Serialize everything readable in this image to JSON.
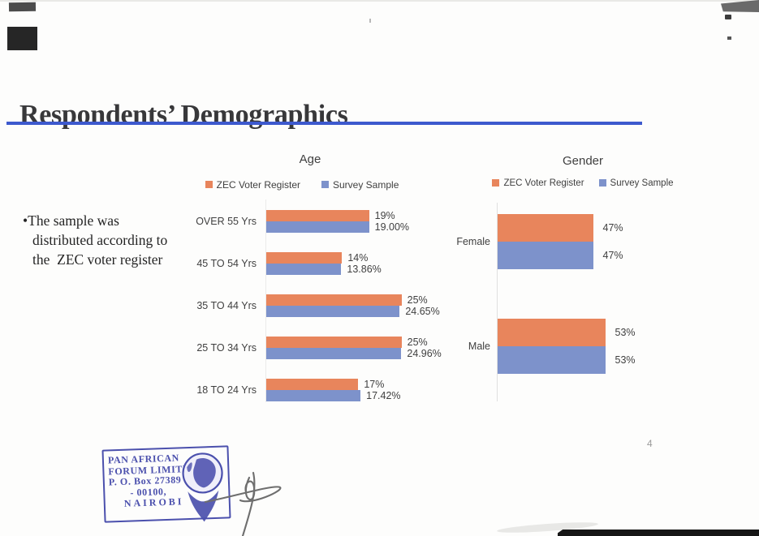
{
  "page": {
    "title": "Respondents’ Demographics",
    "page_number": "4"
  },
  "bullet": {
    "marker": "•",
    "lines": [
      "The sample was",
      "distributed according to",
      "the  ZEC voter register"
    ]
  },
  "chart_data": [
    {
      "type": "bar",
      "orientation": "horizontal",
      "title": "Age",
      "legend_position": "top",
      "grid": false,
      "value_labels": true,
      "categories": [
        "OVER 55 Yrs",
        "45 TO 54 Yrs",
        "35 TO 44 Yrs",
        "25 TO 34 Yrs",
        "18 TO 24 Yrs"
      ],
      "series": [
        {
          "name": "ZEC Voter Register",
          "color": "#E8855C",
          "values": [
            19,
            14,
            25,
            25,
            17
          ],
          "labels": [
            "19%",
            "14%",
            "25%",
            "25%",
            "17%"
          ]
        },
        {
          "name": "Survey Sample",
          "color": "#7D92CB",
          "values": [
            19.0,
            13.86,
            24.65,
            24.96,
            17.42
          ],
          "labels": [
            "19.00%",
            "13.86%",
            "24.65%",
            "24.96%",
            "17.42%"
          ]
        }
      ],
      "xlim": [
        0,
        30
      ]
    },
    {
      "type": "bar",
      "orientation": "horizontal",
      "title": "Gender",
      "legend_position": "top",
      "grid": false,
      "value_labels": true,
      "categories": [
        "Female",
        "Male"
      ],
      "series": [
        {
          "name": "ZEC Voter Register",
          "color": "#E8855C",
          "values": [
            47,
            53
          ],
          "labels": [
            "47%",
            "53%"
          ]
        },
        {
          "name": "Survey Sample",
          "color": "#7D92CB",
          "values": [
            47,
            53
          ],
          "labels": [
            "47%",
            "53%"
          ]
        }
      ],
      "xlim": [
        0,
        60
      ]
    }
  ],
  "stamp": {
    "lines": [
      "PAN AFRICAN",
      "FORUM LIMITED",
      "P. O. Box 27389",
      "- 00100,",
      "NAIROBI"
    ],
    "logo_icon": "globe-hand-icon",
    "ink_color": "#4B50AD"
  },
  "colors": {
    "zec_voter_register": "#E8855C",
    "survey_sample": "#7D92CB",
    "title_underline": "#3D59CE"
  }
}
